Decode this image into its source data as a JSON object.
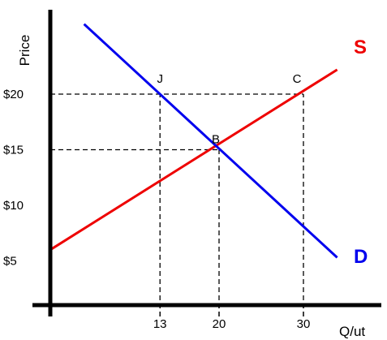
{
  "chart_data": {
    "type": "line",
    "xlabel": "Q/ut",
    "ylabel": "Price",
    "x_ticks": [
      13,
      20,
      30
    ],
    "y_ticks": [
      {
        "value": 5,
        "label": "$5"
      },
      {
        "value": 10,
        "label": "$10"
      },
      {
        "value": 15,
        "label": "$15"
      },
      {
        "value": 20,
        "label": "$20"
      }
    ],
    "series": [
      {
        "name": "S",
        "color": "#ee0000",
        "points": [
          [
            0,
            6
          ],
          [
            34,
            22.2
          ]
        ]
      },
      {
        "name": "D",
        "color": "#0000ee",
        "points": [
          [
            4,
            26.3
          ],
          [
            34,
            5.3
          ]
        ]
      }
    ],
    "points": [
      {
        "label": "J",
        "x": 13,
        "y": 20
      },
      {
        "label": "C",
        "x": 30,
        "y": 20
      },
      {
        "label": "B",
        "x": 20,
        "y": 15
      }
    ],
    "dashed_lines": [
      {
        "from": [
          0,
          20
        ],
        "to": [
          30,
          20
        ]
      },
      {
        "from": [
          0,
          15
        ],
        "to": [
          20,
          15
        ]
      },
      {
        "from": [
          13,
          0
        ],
        "to": [
          13,
          20
        ]
      },
      {
        "from": [
          20,
          0
        ],
        "to": [
          20,
          15
        ]
      },
      {
        "from": [
          30,
          0
        ],
        "to": [
          30,
          20
        ]
      }
    ],
    "grid": false,
    "legend": "none"
  }
}
